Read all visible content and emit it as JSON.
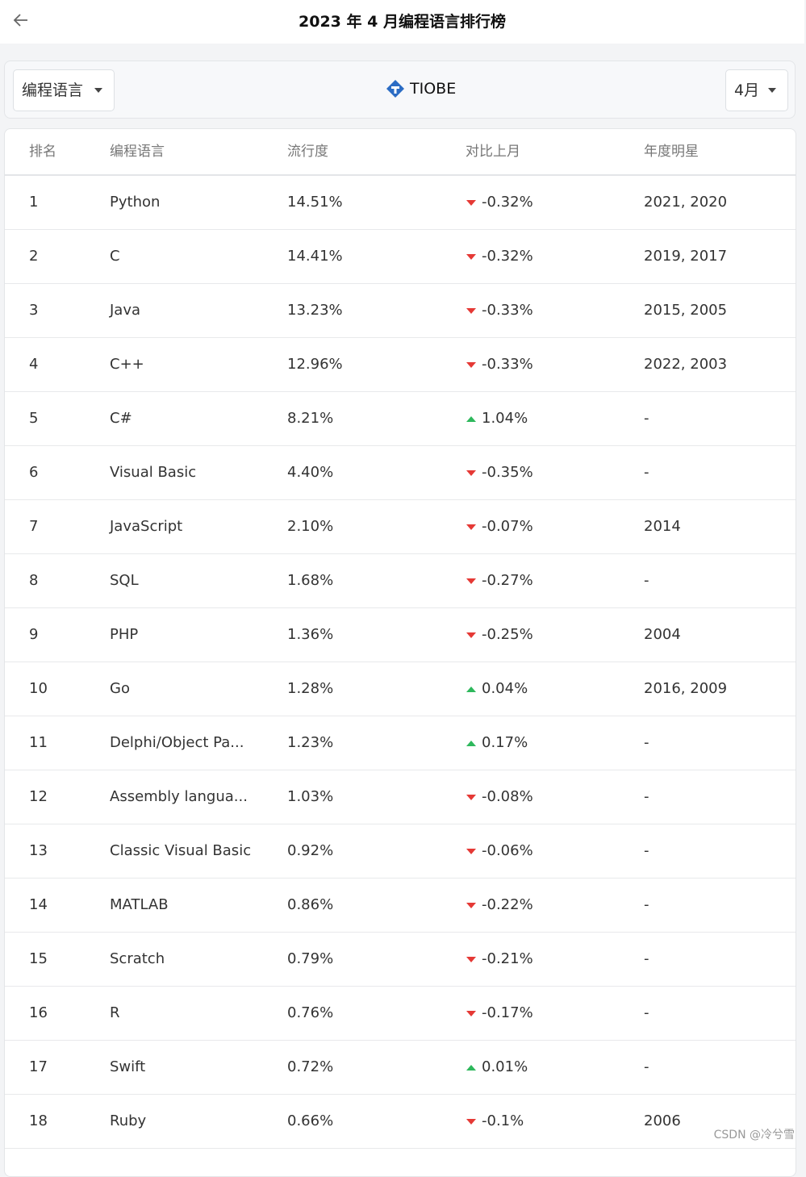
{
  "header": {
    "title": "2023 年 4 月编程语言排行榜"
  },
  "toolbar": {
    "language_select": "编程语言",
    "brand": "TIOBE",
    "month_select": "4月"
  },
  "table": {
    "columns": [
      "排名",
      "编程语言",
      "流行度",
      "对比上月",
      "年度明星"
    ],
    "rows": [
      [
        "1",
        "Python",
        "14.51%",
        "-0.32%",
        "2021, 2020"
      ],
      [
        "2",
        "C",
        "14.41%",
        "-0.32%",
        "2019, 2017"
      ],
      [
        "3",
        "Java",
        "13.23%",
        "-0.33%",
        "2015, 2005"
      ],
      [
        "4",
        "C++",
        "12.96%",
        "-0.33%",
        "2022, 2003"
      ],
      [
        "5",
        "C#",
        "8.21%",
        "1.04%",
        "-"
      ],
      [
        "6",
        "Visual Basic",
        "4.40%",
        "-0.35%",
        "-"
      ],
      [
        "7",
        "JavaScript",
        "2.10%",
        "-0.07%",
        "2014"
      ],
      [
        "8",
        "SQL",
        "1.68%",
        "-0.27%",
        "-"
      ],
      [
        "9",
        "PHP",
        "1.36%",
        "-0.25%",
        "2004"
      ],
      [
        "10",
        "Go",
        "1.28%",
        "0.04%",
        "2016, 2009"
      ],
      [
        "11",
        "Delphi/Object Pa...",
        "1.23%",
        "0.17%",
        "-"
      ],
      [
        "12",
        "Assembly langua...",
        "1.03%",
        "-0.08%",
        "-"
      ],
      [
        "13",
        "Classic Visual Basic",
        "0.92%",
        "-0.06%",
        "-"
      ],
      [
        "14",
        "MATLAB",
        "0.86%",
        "-0.22%",
        "-"
      ],
      [
        "15",
        "Scratch",
        "0.79%",
        "-0.21%",
        "-"
      ],
      [
        "16",
        "R",
        "0.76%",
        "-0.17%",
        "-"
      ],
      [
        "17",
        "Swift",
        "0.72%",
        "0.01%",
        "-"
      ],
      [
        "18",
        "Ruby",
        "0.66%",
        "-0.1%",
        "2006"
      ]
    ]
  },
  "watermark": "CSDN @冷兮雪"
}
